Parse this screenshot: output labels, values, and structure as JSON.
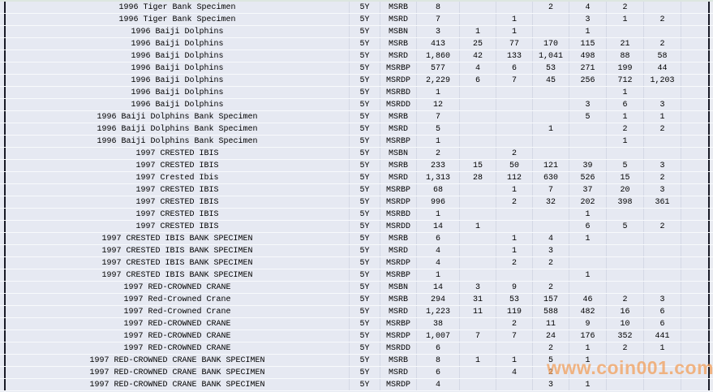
{
  "watermark": {
    "text": "www.coin001.com",
    "color": "#F2A05C"
  },
  "table": {
    "rows": [
      {
        "name": "1996 Tiger Bank Specimen",
        "term": "5Y",
        "grade": "MSRB",
        "values": [
          "8",
          "",
          "",
          "2",
          "4",
          "2",
          ""
        ]
      },
      {
        "name": "1996 Tiger Bank Specimen",
        "term": "5Y",
        "grade": "MSRD",
        "values": [
          "7",
          "",
          "1",
          "",
          "3",
          "1",
          "2"
        ]
      },
      {
        "name": "1996 Baiji Dolphins",
        "term": "5Y",
        "grade": "MSBN",
        "values": [
          "3",
          "1",
          "1",
          "",
          "1",
          "",
          ""
        ]
      },
      {
        "name": "1996 Baiji Dolphins",
        "term": "5Y",
        "grade": "MSRB",
        "values": [
          "413",
          "25",
          "77",
          "170",
          "115",
          "21",
          "2"
        ]
      },
      {
        "name": "1996 Baiji Dolphins",
        "term": "5Y",
        "grade": "MSRD",
        "values": [
          "1,860",
          "42",
          "133",
          "1,041",
          "498",
          "88",
          "58"
        ]
      },
      {
        "name": "1996 Baiji Dolphins",
        "term": "5Y",
        "grade": "MSRBP",
        "values": [
          "577",
          "4",
          "6",
          "53",
          "271",
          "199",
          "44"
        ]
      },
      {
        "name": "1996 Baiji Dolphins",
        "term": "5Y",
        "grade": "MSRDP",
        "values": [
          "2,229",
          "6",
          "7",
          "45",
          "256",
          "712",
          "1,203"
        ]
      },
      {
        "name": "1996 Baiji Dolphins",
        "term": "5Y",
        "grade": "MSRBD",
        "values": [
          "1",
          "",
          "",
          "",
          "",
          "1",
          ""
        ]
      },
      {
        "name": "1996 Baiji Dolphins",
        "term": "5Y",
        "grade": "MSRDD",
        "values": [
          "12",
          "",
          "",
          "",
          "3",
          "6",
          "3"
        ]
      },
      {
        "name": "1996 Baiji Dolphins Bank Specimen",
        "term": "5Y",
        "grade": "MSRB",
        "values": [
          "7",
          "",
          "",
          "",
          "5",
          "1",
          "1"
        ]
      },
      {
        "name": "1996 Baiji Dolphins Bank Specimen",
        "term": "5Y",
        "grade": "MSRD",
        "values": [
          "5",
          "",
          "",
          "1",
          "",
          "2",
          "2"
        ]
      },
      {
        "name": "1996 Baiji Dolphins Bank Specimen",
        "term": "5Y",
        "grade": "MSRBP",
        "values": [
          "1",
          "",
          "",
          "",
          "",
          "1",
          ""
        ]
      },
      {
        "name": "1997 CRESTED IBIS",
        "term": "5Y",
        "grade": "MSBN",
        "values": [
          "2",
          "",
          "2",
          "",
          "",
          "",
          ""
        ]
      },
      {
        "name": "1997 CRESTED IBIS",
        "term": "5Y",
        "grade": "MSRB",
        "values": [
          "233",
          "15",
          "50",
          "121",
          "39",
          "5",
          "3"
        ]
      },
      {
        "name": "1997 Crested Ibis",
        "term": "5Y",
        "grade": "MSRD",
        "values": [
          "1,313",
          "28",
          "112",
          "630",
          "526",
          "15",
          "2"
        ]
      },
      {
        "name": "1997 CRESTED IBIS",
        "term": "5Y",
        "grade": "MSRBP",
        "values": [
          "68",
          "",
          "1",
          "7",
          "37",
          "20",
          "3"
        ]
      },
      {
        "name": "1997 CRESTED IBIS",
        "term": "5Y",
        "grade": "MSRDP",
        "values": [
          "996",
          "",
          "2",
          "32",
          "202",
          "398",
          "361"
        ]
      },
      {
        "name": "1997 CRESTED IBIS",
        "term": "5Y",
        "grade": "MSRBD",
        "values": [
          "1",
          "",
          "",
          "",
          "1",
          "",
          ""
        ]
      },
      {
        "name": "1997 CRESTED IBIS",
        "term": "5Y",
        "grade": "MSRDD",
        "values": [
          "14",
          "1",
          "",
          "",
          "6",
          "5",
          "2"
        ]
      },
      {
        "name": "1997 CRESTED IBIS BANK SPECIMEN",
        "term": "5Y",
        "grade": "MSRB",
        "values": [
          "6",
          "",
          "1",
          "4",
          "1",
          "",
          ""
        ]
      },
      {
        "name": "1997 CRESTED IBIS BANK SPECIMEN",
        "term": "5Y",
        "grade": "MSRD",
        "values": [
          "4",
          "",
          "1",
          "3",
          "",
          "",
          ""
        ]
      },
      {
        "name": "1997 CRESTED IBIS BANK SPECIMEN",
        "term": "5Y",
        "grade": "MSRDP",
        "values": [
          "4",
          "",
          "2",
          "2",
          "",
          "",
          ""
        ]
      },
      {
        "name": "1997 CRESTED IBIS BANK SPECIMEN",
        "term": "5Y",
        "grade": "MSRBP",
        "values": [
          "1",
          "",
          "",
          "",
          "1",
          "",
          ""
        ]
      },
      {
        "name": "1997 RED-CROWNED CRANE",
        "term": "5Y",
        "grade": "MSBN",
        "values": [
          "14",
          "3",
          "9",
          "2",
          "",
          "",
          ""
        ]
      },
      {
        "name": "1997 Red-Crowned Crane",
        "term": "5Y",
        "grade": "MSRB",
        "values": [
          "294",
          "31",
          "53",
          "157",
          "46",
          "2",
          "3"
        ]
      },
      {
        "name": "1997 Red-Crowned Crane",
        "term": "5Y",
        "grade": "MSRD",
        "values": [
          "1,223",
          "11",
          "119",
          "588",
          "482",
          "16",
          "6"
        ]
      },
      {
        "name": "1997 RED-CROWNED CRANE",
        "term": "5Y",
        "grade": "MSRBP",
        "values": [
          "38",
          "",
          "2",
          "11",
          "9",
          "10",
          "6"
        ]
      },
      {
        "name": "1997 RED-CROWNED CRANE",
        "term": "5Y",
        "grade": "MSRDP",
        "values": [
          "1,007",
          "7",
          "7",
          "24",
          "176",
          "352",
          "441"
        ]
      },
      {
        "name": "1997 RED-CROWNED CRANE",
        "term": "5Y",
        "grade": "MSRDD",
        "values": [
          "6",
          "",
          "",
          "2",
          "1",
          "2",
          "1"
        ]
      },
      {
        "name": "1997 RED-CROWNED CRANE BANK SPECIMEN",
        "term": "5Y",
        "grade": "MSRB",
        "values": [
          "8",
          "1",
          "1",
          "5",
          "1",
          "",
          ""
        ]
      },
      {
        "name": "1997 RED-CROWNED CRANE BANK SPECIMEN",
        "term": "5Y",
        "grade": "MSRD",
        "values": [
          "6",
          "",
          "4",
          "2",
          "",
          "",
          ""
        ]
      },
      {
        "name": "1997 RED-CROWNED CRANE BANK SPECIMEN",
        "term": "5Y",
        "grade": "MSRDP",
        "values": [
          "4",
          "",
          "",
          "3",
          "1",
          "",
          ""
        ]
      }
    ]
  }
}
